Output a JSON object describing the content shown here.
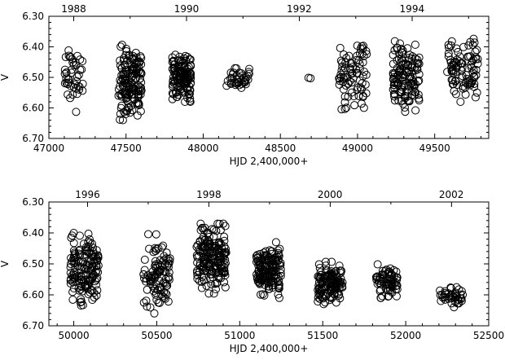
{
  "chart_data": [
    {
      "type": "scatter",
      "xlabel": "HJD 2,400,000+",
      "ylabel": "V",
      "xlim": [
        47000,
        49850
      ],
      "ylim": [
        6.7,
        6.3
      ],
      "y_inverted": true,
      "xticks": [
        "47000",
        "47500",
        "48000",
        "48500",
        "49000",
        "49500"
      ],
      "yticks": [
        "6.30",
        "6.40",
        "6.50",
        "6.60",
        "6.70"
      ],
      "top_axis": {
        "labels": [
          "1988",
          "1990",
          "1992",
          "1994"
        ],
        "positions": [
          47161,
          47892,
          48622,
          49353
        ]
      },
      "marker": "open-circle",
      "clusters": [
        {
          "x_range": [
            47100,
            47220
          ],
          "y_range": [
            6.37,
            6.62
          ],
          "n": 45
        },
        {
          "x_range": [
            47450,
            47600
          ],
          "y_range": [
            6.39,
            6.64
          ],
          "n": 150
        },
        {
          "x_range": [
            47800,
            47920
          ],
          "y_range": [
            6.42,
            6.58
          ],
          "n": 130
        },
        {
          "x_range": [
            48150,
            48300
          ],
          "y_range": [
            6.47,
            6.55
          ],
          "n": 40
        },
        {
          "x_range": [
            48680,
            48700
          ],
          "y_range": [
            6.48,
            6.51
          ],
          "n": 2
        },
        {
          "x_range": [
            48880,
            49060
          ],
          "y_range": [
            6.39,
            6.61
          ],
          "n": 80
        },
        {
          "x_range": [
            49230,
            49400
          ],
          "y_range": [
            6.38,
            6.62
          ],
          "n": 130
        },
        {
          "x_range": [
            49580,
            49780
          ],
          "y_range": [
            6.37,
            6.58
          ],
          "n": 90
        }
      ]
    },
    {
      "type": "scatter",
      "xlabel": "HJD 2,400,000+",
      "ylabel": "V",
      "xlim": [
        49850,
        52500
      ],
      "ylim": [
        6.7,
        6.3
      ],
      "y_inverted": true,
      "xticks": [
        "50000",
        "50500",
        "51000",
        "51500",
        "52000",
        "52500"
      ],
      "yticks": [
        "6.30",
        "6.40",
        "6.50",
        "6.60",
        "6.70"
      ],
      "top_axis": {
        "labels": [
          "1996",
          "1998",
          "2000",
          "2002"
        ],
        "positions": [
          50083,
          50814,
          51544,
          52275
        ]
      },
      "marker": "open-circle",
      "clusters": [
        {
          "x_range": [
            49980,
            50150
          ],
          "y_range": [
            6.4,
            6.64
          ],
          "n": 150
        },
        {
          "x_range": [
            50420,
            50580
          ],
          "y_range": [
            6.4,
            6.66
          ],
          "n": 100
        },
        {
          "x_range": [
            50740,
            50920
          ],
          "y_range": [
            6.37,
            6.6
          ],
          "n": 180
        },
        {
          "x_range": [
            51100,
            51250
          ],
          "y_range": [
            6.43,
            6.61
          ],
          "n": 150
        },
        {
          "x_range": [
            51470,
            51620
          ],
          "y_range": [
            6.49,
            6.63
          ],
          "n": 120
        },
        {
          "x_range": [
            51820,
            51950
          ],
          "y_range": [
            6.5,
            6.61
          ],
          "n": 70
        },
        {
          "x_range": [
            52200,
            52350
          ],
          "y_range": [
            6.57,
            6.64
          ],
          "n": 40
        }
      ]
    }
  ]
}
